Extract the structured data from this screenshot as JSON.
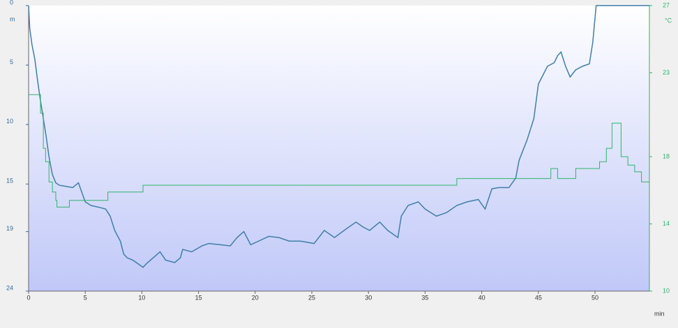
{
  "chart_data": {
    "type": "line",
    "xlabel": "min",
    "ylabel": "m",
    "y2label": "°C",
    "xlim": [
      0,
      54.8
    ],
    "xticks": [
      0,
      5,
      10,
      15,
      20,
      25,
      30,
      35,
      40,
      45,
      50
    ],
    "ylim": [
      24,
      0
    ],
    "yticks": [
      0,
      5,
      10,
      15,
      19,
      24
    ],
    "y2lim": [
      10,
      27
    ],
    "y2ticks": [
      27,
      23,
      18,
      14,
      10
    ],
    "y_color": "#2b6ca3",
    "y2_color": "#2db56a",
    "series": [
      {
        "color": "#3f7eaa",
        "x": [
          0,
          0.1,
          0.3,
          0.55,
          0.75,
          1.0,
          1.3,
          1.55,
          1.8,
          2.1,
          2.4,
          2.7,
          3.3,
          3.9,
          4.4,
          4.7,
          5.0,
          5.5,
          6.4,
          6.8,
          7.2,
          7.6,
          8.1,
          8.4,
          8.7,
          9.2,
          9.8,
          10.1,
          10.4,
          11.0,
          11.6,
          12.1,
          12.9,
          13.4,
          13.6,
          14.4,
          15.3,
          15.9,
          16.9,
          17.8,
          18.4,
          19.0,
          19.6,
          20.3,
          21.2,
          22.1,
          23.0,
          24.0,
          25.2,
          26.1,
          27.0,
          28.0,
          28.9,
          29.5,
          30.1,
          31.0,
          31.7,
          32.6,
          32.9,
          33.5,
          34.4,
          35.0,
          36.0,
          36.9,
          37.8,
          38.7,
          39.7,
          40.3,
          40.9,
          41.5,
          42.4,
          43.0,
          43.3,
          44.0,
          44.6,
          45.0,
          45.8,
          46.4,
          46.7,
          47.0,
          47.4,
          47.8,
          48.3,
          48.9,
          49.5,
          49.8,
          50.1,
          51.0,
          54.8
        ],
        "values": [
          0,
          1.9,
          3.3,
          4.5,
          6.0,
          7.7,
          9.5,
          11.0,
          12.7,
          14.2,
          14.9,
          15.1,
          15.2,
          15.3,
          14.9,
          15.7,
          16.5,
          16.8,
          17.0,
          17.1,
          17.7,
          18.9,
          19.8,
          20.9,
          21.2,
          21.4,
          21.8,
          22.0,
          21.7,
          21.2,
          20.7,
          21.4,
          21.6,
          21.2,
          20.5,
          20.7,
          20.2,
          20.0,
          20.1,
          20.2,
          19.5,
          19.0,
          20.1,
          19.8,
          19.4,
          19.5,
          19.8,
          19.8,
          20.0,
          18.9,
          19.5,
          18.8,
          18.2,
          18.6,
          18.9,
          18.2,
          18.9,
          19.5,
          17.7,
          16.8,
          16.5,
          17.1,
          17.7,
          17.4,
          16.8,
          16.5,
          16.3,
          17.1,
          15.4,
          15.3,
          15.3,
          14.5,
          13.0,
          11.3,
          9.5,
          6.6,
          5.1,
          4.8,
          4.2,
          3.9,
          5.1,
          6.0,
          5.4,
          5.1,
          4.9,
          3.1,
          0,
          0,
          0
        ]
      },
      {
        "color": "#2db56a",
        "axis": "y2",
        "step": true,
        "x": [
          0,
          0.9,
          1.05,
          1.3,
          1.5,
          1.8,
          2.1,
          2.4,
          2.5,
          3.3,
          3.6,
          6.7,
          7.0,
          9.8,
          10.1,
          33.2,
          37.5,
          37.8,
          38.4,
          40.6,
          45.8,
          46.1,
          46.7,
          47.9,
          48.3,
          49.8,
          50.4,
          51.0,
          51.5,
          52.0,
          52.3,
          52.9,
          53.5,
          54.1,
          54.8
        ],
        "values": [
          21.7,
          21.7,
          20.6,
          18.5,
          17.7,
          16.5,
          15.9,
          15.4,
          15.0,
          15.0,
          15.4,
          15.4,
          15.9,
          15.9,
          16.3,
          16.3,
          16.3,
          16.7,
          16.7,
          16.7,
          16.7,
          17.3,
          16.7,
          16.7,
          17.3,
          17.3,
          17.7,
          18.5,
          20.0,
          20.0,
          18.0,
          17.5,
          17.1,
          16.5,
          15.9
        ]
      }
    ]
  }
}
